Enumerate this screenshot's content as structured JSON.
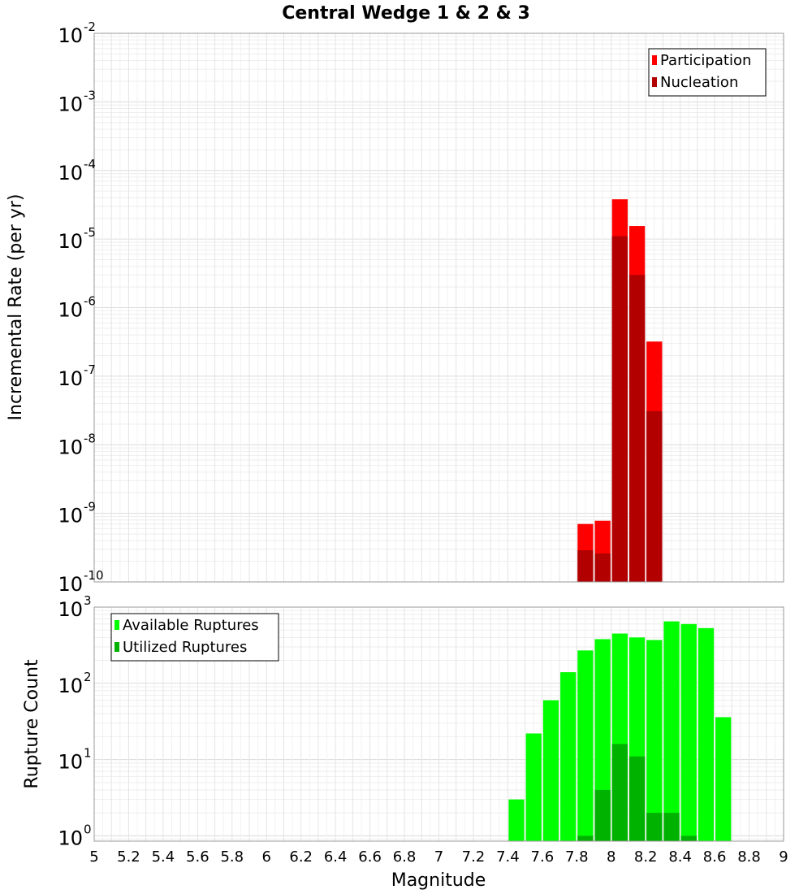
{
  "chart_data": {
    "title": "Central Wedge 1 & 2 & 3",
    "xlabel": "Magnitude",
    "xlim": [
      5,
      9
    ],
    "xticks": [
      "5",
      "5.2",
      "5.4",
      "5.6",
      "5.8",
      "6",
      "6.2",
      "6.4",
      "6.6",
      "6.8",
      "7",
      "7.2",
      "7.4",
      "7.6",
      "7.8",
      "8",
      "8.2",
      "8.4",
      "8.6",
      "8.8",
      "9"
    ],
    "grid": true,
    "panels": [
      {
        "type": "bar",
        "ylabel": "Incremental Rate (per yr)",
        "yscale": "log",
        "ylim": [
          1e-10,
          0.01
        ],
        "yticks": [
          {
            "base": "10",
            "exp": "-2",
            "value": 0.01
          },
          {
            "base": "10",
            "exp": "-3",
            "value": 0.001
          },
          {
            "base": "10",
            "exp": "-4",
            "value": 0.0001
          },
          {
            "base": "10",
            "exp": "-5",
            "value": 1e-05
          },
          {
            "base": "10",
            "exp": "-6",
            "value": 1e-06
          },
          {
            "base": "10",
            "exp": "-7",
            "value": 1e-07
          },
          {
            "base": "10",
            "exp": "-8",
            "value": 1e-08
          },
          {
            "base": "10",
            "exp": "-9",
            "value": 1e-09
          },
          {
            "base": "10",
            "exp": "-10",
            "value": 1e-10
          }
        ],
        "legend_position": "top-right",
        "series": [
          {
            "name": "Participation",
            "color": "#ff0000",
            "x": [
              7.85,
              7.95,
              8.05,
              8.15,
              8.25
            ],
            "values": [
              7e-10,
              7.8e-10,
              3.8e-05,
              1.55e-05,
              3.2e-07
            ]
          },
          {
            "name": "Nucleation",
            "color": "#b20000",
            "x": [
              7.85,
              7.95,
              8.05,
              8.15,
              8.25
            ],
            "values": [
              2.9e-10,
              2.6e-10,
              1.1e-05,
              3e-06,
              3.1e-08
            ]
          }
        ]
      },
      {
        "type": "bar",
        "ylabel": "Rupture Count",
        "yscale": "log",
        "ylim": [
          0.85,
          1000
        ],
        "yticks": [
          {
            "base": "10",
            "exp": "3",
            "value": 1000
          },
          {
            "base": "10",
            "exp": "2",
            "value": 100
          },
          {
            "base": "10",
            "exp": "1",
            "value": 10
          },
          {
            "base": "10",
            "exp": "0",
            "value": 1
          }
        ],
        "legend_position": "top-left",
        "series": [
          {
            "name": "Available Ruptures",
            "color": "#00ff00",
            "x": [
              7.45,
              7.55,
              7.65,
              7.75,
              7.85,
              7.95,
              8.05,
              8.15,
              8.25,
              8.35,
              8.45,
              8.55,
              8.65
            ],
            "values": [
              3,
              22,
              60,
              140,
              270,
              380,
              450,
              400,
              370,
              650,
              600,
              530,
              36
            ]
          },
          {
            "name": "Utilized Ruptures",
            "color": "#00b200",
            "x": [
              7.85,
              7.95,
              8.05,
              8.15,
              8.25,
              8.35,
              8.45
            ],
            "values": [
              1,
              4,
              16,
              11,
              2,
              2,
              1
            ]
          }
        ]
      }
    ]
  }
}
